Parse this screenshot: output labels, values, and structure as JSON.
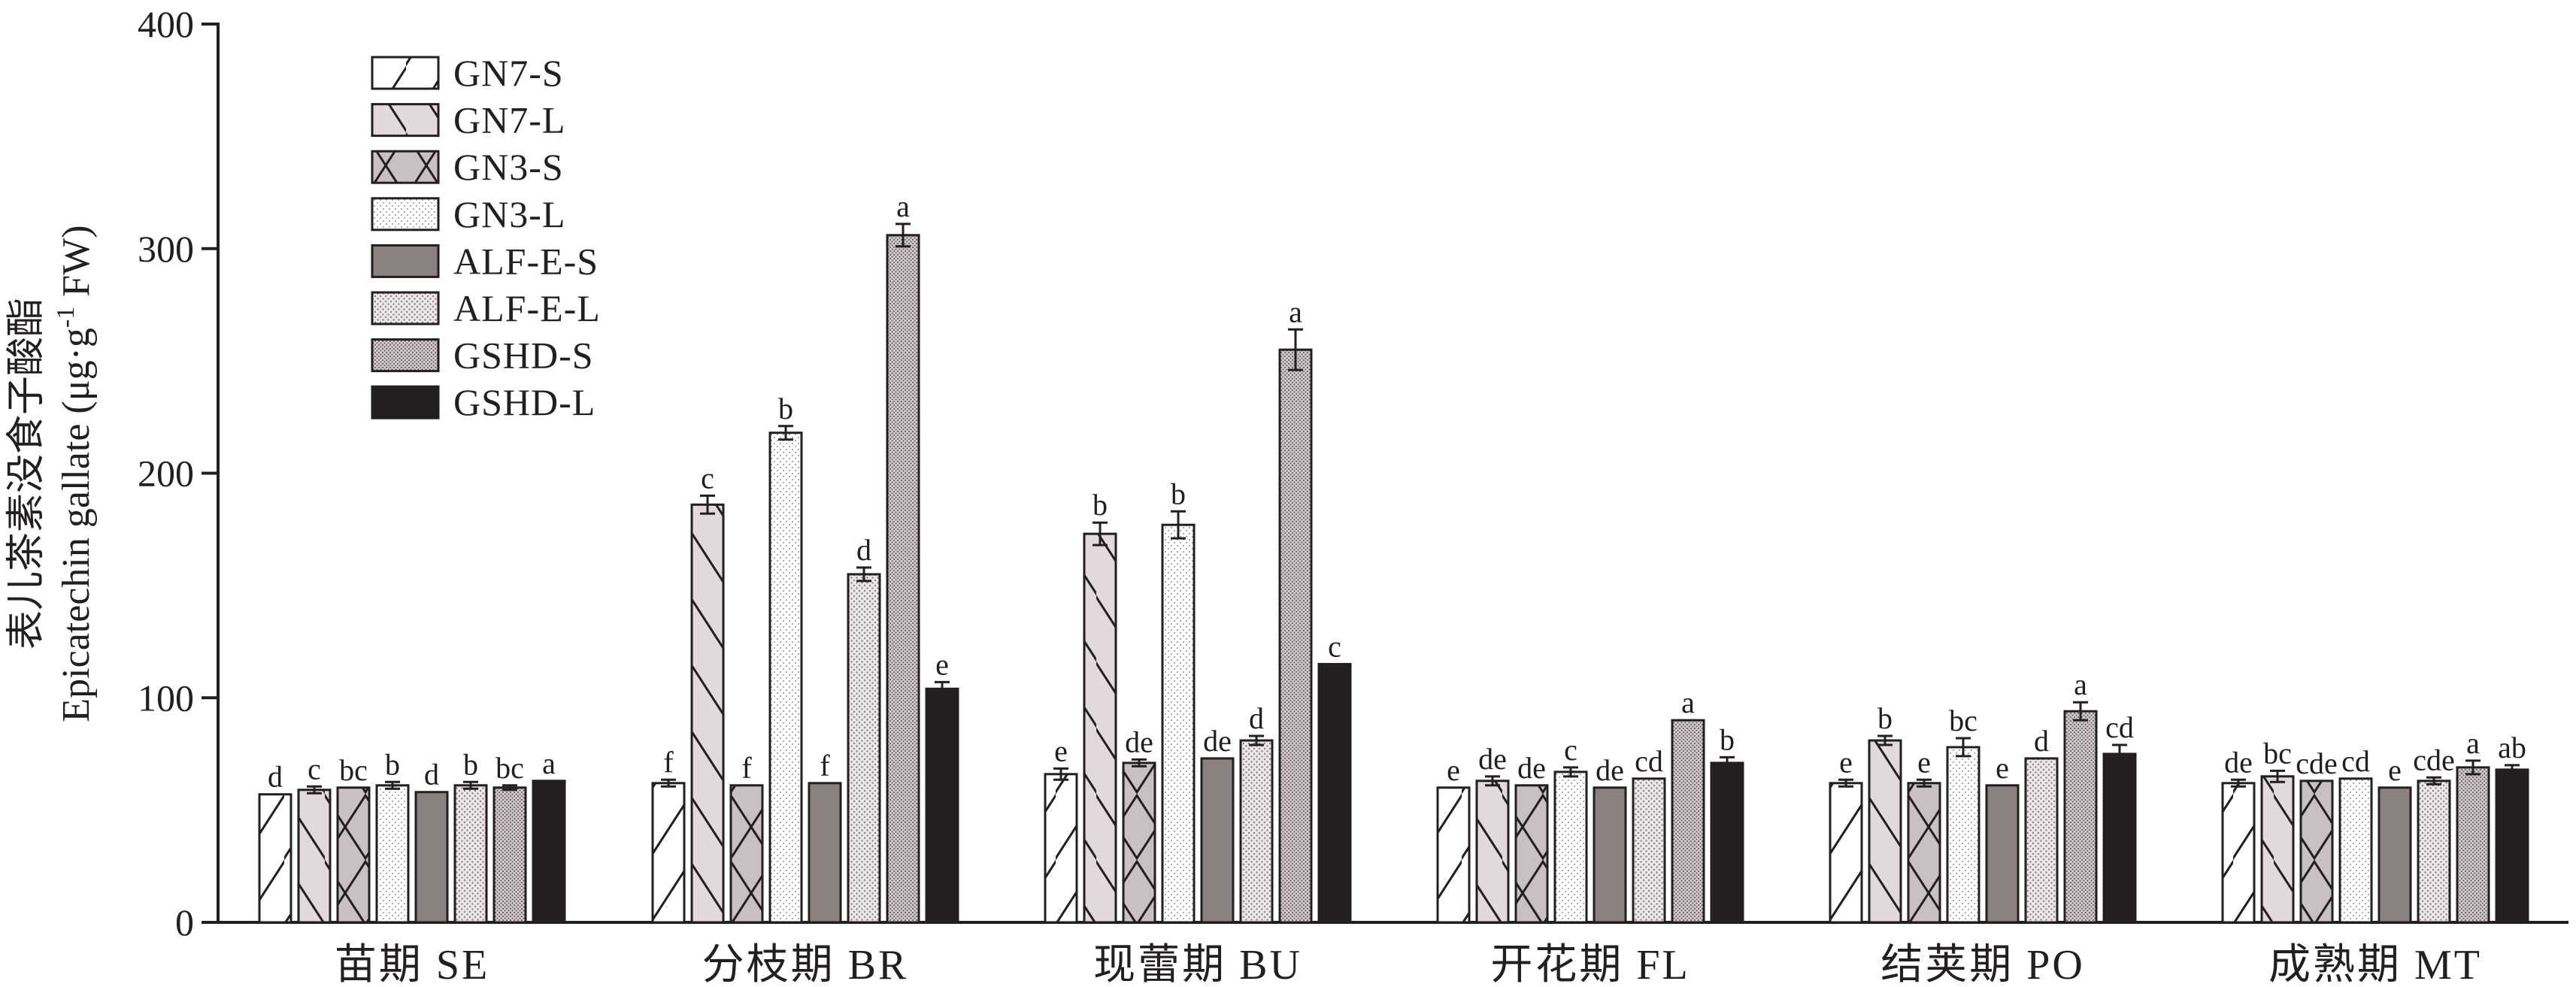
{
  "chart_data": {
    "type": "bar",
    "ylabel_cn": "表儿茶素没食子酸酯",
    "ylabel_en": "Epicatechin gallate (μg·g",
    "ylabel_sup": "-1",
    "ylabel_unit": " FW)",
    "ylim": [
      0,
      400
    ],
    "yticks": [
      "0",
      "100",
      "200",
      "300",
      "400"
    ],
    "ytick_values": [
      0,
      100,
      200,
      300,
      400
    ],
    "categories": [
      "苗期 SE",
      "分枝期 BR",
      "现蕾期 BU",
      "开花期 FL",
      "结荚期 PO",
      "成熟期 MT"
    ],
    "legend_position": "top-left",
    "series": [
      {
        "name": "GN7-S",
        "pattern": "fwd-slash",
        "values": [
          57,
          62,
          66,
          60,
          62,
          62
        ],
        "errors": [
          0,
          1.5,
          2.5,
          0,
          1.5,
          1.5
        ],
        "letters": [
          "d",
          "f",
          "e",
          "e",
          "e",
          "de"
        ]
      },
      {
        "name": "GN7-L",
        "pattern": "back-slash",
        "values": [
          59,
          186,
          173,
          63,
          81,
          65
        ],
        "errors": [
          1.5,
          4,
          5,
          2,
          2,
          2.5
        ],
        "letters": [
          "c",
          "c",
          "b",
          "de",
          "b",
          "bc"
        ]
      },
      {
        "name": "GN3-S",
        "pattern": "cross-hatch",
        "values": [
          60,
          61,
          71,
          61,
          62,
          63
        ],
        "errors": [
          0,
          0,
          1.5,
          0,
          1.5,
          0
        ],
        "letters": [
          "bc",
          "f",
          "de",
          "de",
          "e",
          "cde"
        ]
      },
      {
        "name": "GN3-L",
        "pattern": "light-dots",
        "values": [
          61,
          218,
          177,
          67,
          78,
          64
        ],
        "errors": [
          1.5,
          3,
          6,
          2,
          4,
          0
        ],
        "letters": [
          "b",
          "b",
          "b",
          "c",
          "bc",
          "cd"
        ]
      },
      {
        "name": "ALF-E-S",
        "pattern": "solid-gray",
        "values": [
          58,
          62,
          73,
          60,
          61,
          60
        ],
        "errors": [
          0,
          0,
          0,
          0,
          0,
          0
        ],
        "letters": [
          "d",
          "f",
          "de",
          "de",
          "e",
          "e"
        ]
      },
      {
        "name": "ALF-E-L",
        "pattern": "med-dots",
        "values": [
          61,
          155,
          81,
          64,
          73,
          63
        ],
        "errors": [
          1.5,
          3,
          2,
          0,
          0,
          1.5
        ],
        "letters": [
          "b",
          "d",
          "d",
          "cd",
          "d",
          "cde"
        ]
      },
      {
        "name": "GSHD-S",
        "pattern": "dense-dots",
        "values": [
          60,
          306,
          255,
          90,
          94,
          69
        ],
        "errors": [
          1,
          5,
          9,
          0,
          4,
          3
        ],
        "letters": [
          "bc",
          "a",
          "a",
          "a",
          "a",
          "a"
        ]
      },
      {
        "name": "GSHD-L",
        "pattern": "solid-black",
        "values": [
          63,
          104,
          115,
          71,
          75,
          68
        ],
        "errors": [
          0,
          3,
          0,
          2.5,
          4,
          2
        ],
        "letters": [
          "a",
          "e",
          "c",
          "b",
          "cd",
          "ab"
        ]
      }
    ],
    "colors": {
      "axis": "#231f20",
      "white_fill": "#ffffff",
      "light_fill": "#e2dada",
      "mid_fill": "#c9c1c1",
      "dark_gray": "#8a8180",
      "black_fill": "#231f20"
    }
  }
}
